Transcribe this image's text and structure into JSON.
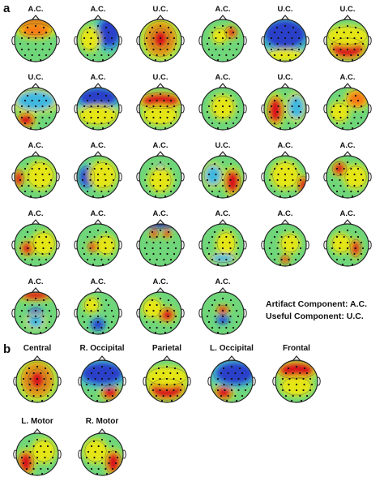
{
  "panel_a": {
    "letter": "a",
    "maps": [
      {
        "label": "A.C.",
        "pattern": "front-top"
      },
      {
        "label": "A.C.",
        "pattern": "right-blue"
      },
      {
        "label": "U.C.",
        "pattern": "center-red"
      },
      {
        "label": "A.C.",
        "pattern": "small-right-top"
      },
      {
        "label": "U.C.",
        "pattern": "blue-top-wide"
      },
      {
        "label": "U.C.",
        "pattern": "back-red"
      },
      {
        "label": "U.C.",
        "pattern": "left-back"
      },
      {
        "label": "A.C.",
        "pattern": "blue-top"
      },
      {
        "label": "U.C.",
        "pattern": "top-red-wide"
      },
      {
        "label": "A.C.",
        "pattern": "flat"
      },
      {
        "label": "U.C.",
        "pattern": "left-red"
      },
      {
        "label": "A.C.",
        "pattern": "right-top-orange"
      },
      {
        "label": "A.C.",
        "pattern": "left-red-edge"
      },
      {
        "label": "A.C.",
        "pattern": "left-blue"
      },
      {
        "label": "A.C.",
        "pattern": "flat-small"
      },
      {
        "label": "U.C.",
        "pattern": "right-red"
      },
      {
        "label": "A.C.",
        "pattern": "right-edge"
      },
      {
        "label": "A.C.",
        "pattern": "left-top-red"
      },
      {
        "label": "A.C.",
        "pattern": "left-blob"
      },
      {
        "label": "A.C.",
        "pattern": "left-small-blob"
      },
      {
        "label": "A.C.",
        "pattern": "top-dipole"
      },
      {
        "label": "A.C.",
        "pattern": "flat-right"
      },
      {
        "label": "A.C.",
        "pattern": "bottom-small"
      },
      {
        "label": "A.C.",
        "pattern": "right-small-blob"
      },
      {
        "label": "A.C.",
        "pattern": "red-front-blue-center"
      },
      {
        "label": "A.C.",
        "pattern": "blue-blob-bottom"
      },
      {
        "label": "A.C.",
        "pattern": "right-center-red"
      },
      {
        "label": "A.C.",
        "pattern": "center-dipole"
      }
    ]
  },
  "legend": {
    "line1": "Artifact Component: A.C.",
    "line2": "Useful Component: U.C."
  },
  "panel_b": {
    "letter": "b",
    "maps": [
      {
        "label": "Central",
        "pattern": "center-red"
      },
      {
        "label": "R. Occipital",
        "pattern": "back-right"
      },
      {
        "label": "Parietal",
        "pattern": "back-red"
      },
      {
        "label": "L. Occipital",
        "pattern": "back-left"
      },
      {
        "label": "Frontal",
        "pattern": "front-red"
      },
      {
        "label": "L. Motor",
        "pattern": "left-motor"
      },
      {
        "label": "R. Motor",
        "pattern": "right-motor"
      }
    ]
  },
  "colors": {
    "red": "#d7191c",
    "orange": "#f57a14",
    "yellow": "#e6e619",
    "green": "#6fd67a",
    "cyan": "#3fb8e0",
    "blue": "#2a3fc9",
    "darkblue": "#1b1f8f"
  }
}
